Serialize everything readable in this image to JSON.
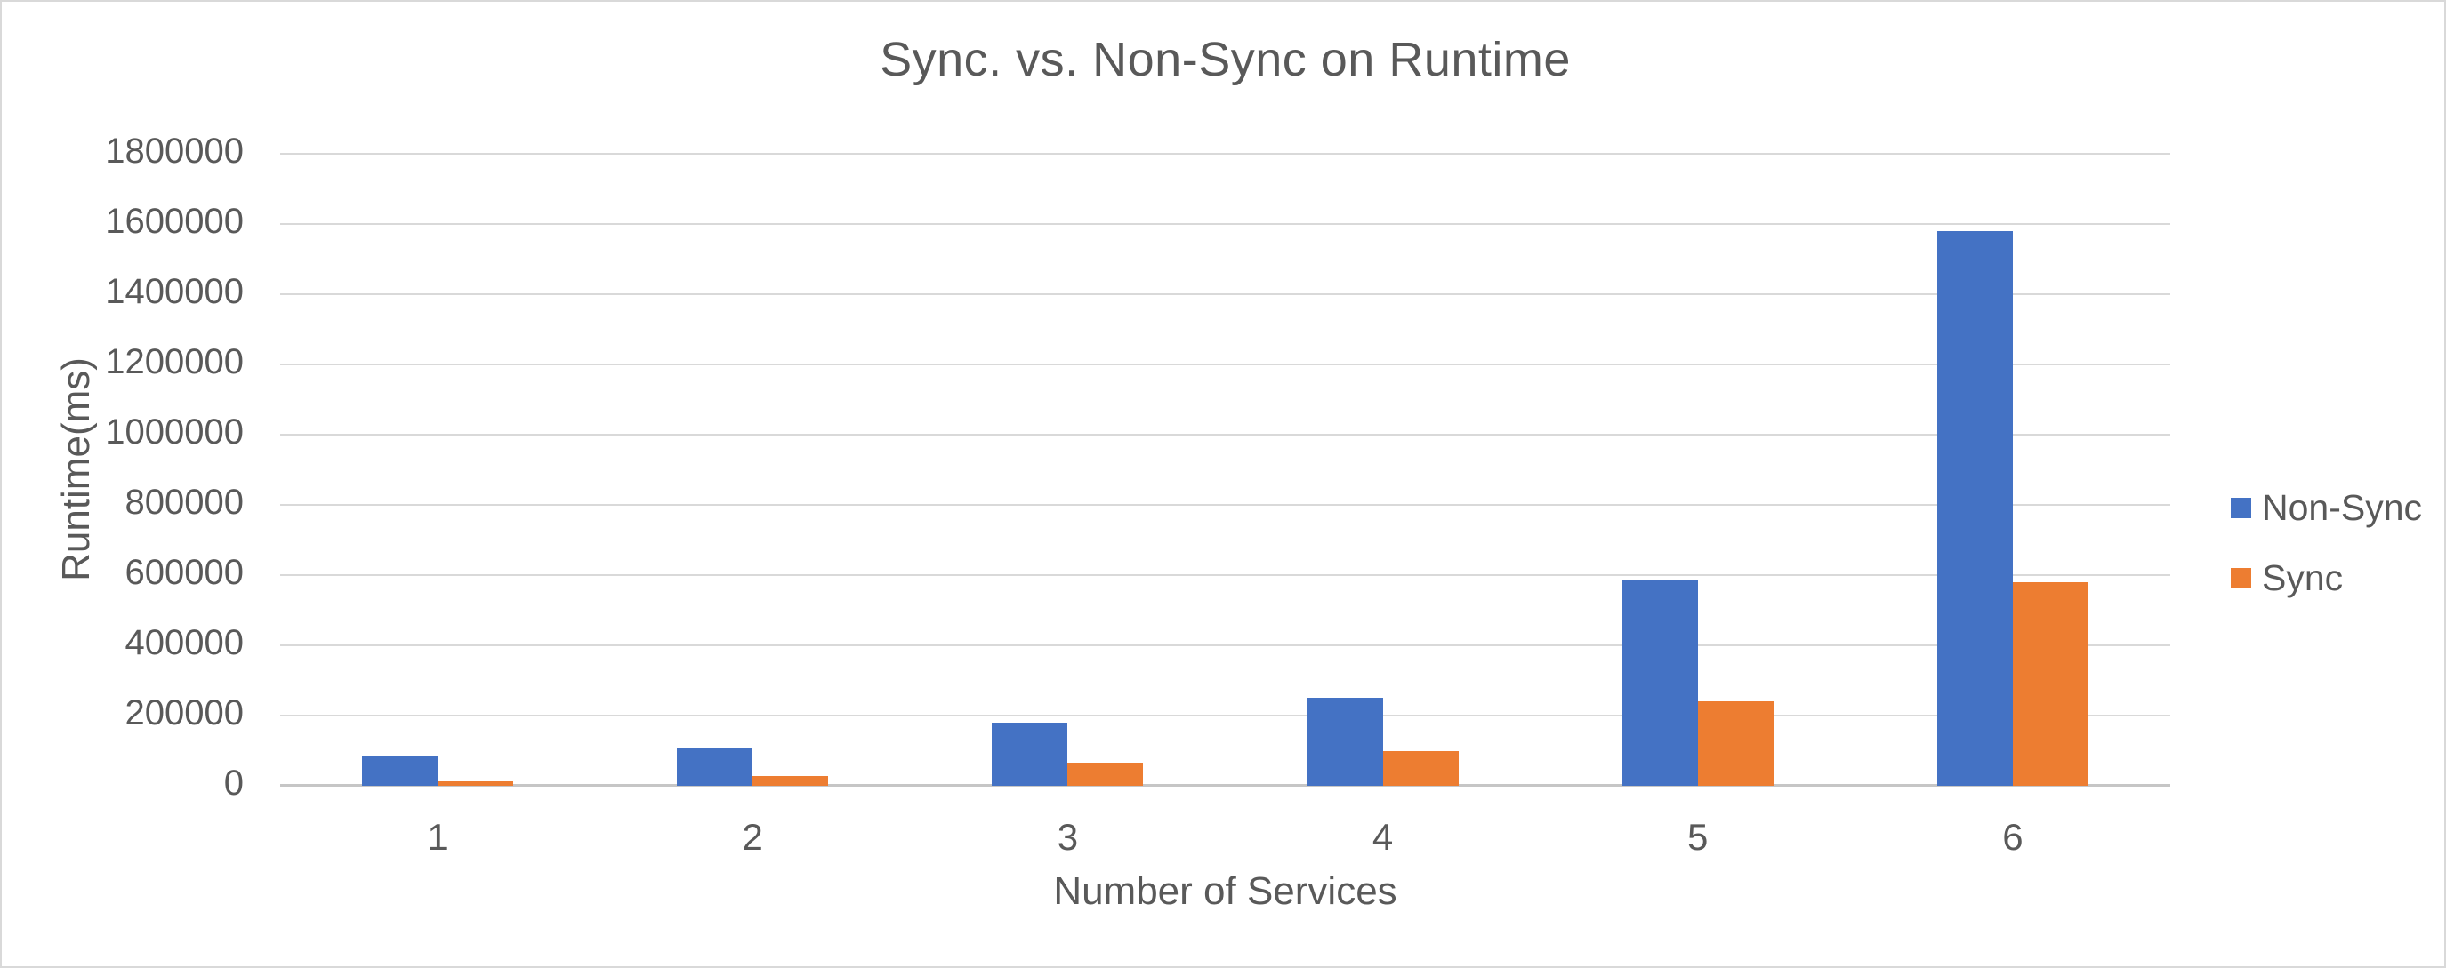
{
  "chart_data": {
    "type": "bar",
    "title": "Sync. vs. Non-Sync on Runtime",
    "xlabel": "Number of Services",
    "ylabel": "Runtime(ms)",
    "categories": [
      "1",
      "2",
      "3",
      "4",
      "5",
      "6"
    ],
    "series": [
      {
        "name": "Non-Sync",
        "color": "#4472C4",
        "values": [
          84000,
          110000,
          180000,
          250000,
          585000,
          1580000
        ]
      },
      {
        "name": "Sync",
        "color": "#ED7D31",
        "values": [
          12000,
          27000,
          65000,
          98000,
          240000,
          580000
        ]
      }
    ],
    "ylim": [
      0,
      1800000
    ],
    "yticks": [
      0,
      200000,
      400000,
      600000,
      800000,
      1000000,
      1200000,
      1400000,
      1600000,
      1800000
    ],
    "grid": true,
    "legend_position": "right",
    "styles": {
      "text_color": "#595959",
      "gridline_color": "#d9d9d9",
      "axis_line_color": "#c6c6c6",
      "border_color": "#d9d9d9",
      "background": "#ffffff"
    }
  }
}
